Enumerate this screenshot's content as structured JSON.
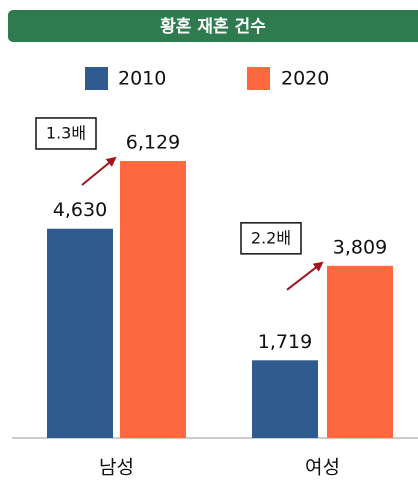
{
  "chart_data": {
    "type": "bar",
    "title": "황혼 재혼 건수",
    "categories": [
      "남성",
      "여성"
    ],
    "series": [
      {
        "name": "2010",
        "color": "#2f5b8f",
        "values": [
          4630,
          1719
        ],
        "value_labels": [
          "4,630",
          "1,719"
        ]
      },
      {
        "name": "2020",
        "color": "#fd6a3f",
        "values": [
          6129,
          3809
        ],
        "value_labels": [
          "6,129",
          "3,809"
        ]
      }
    ],
    "ylim": [
      0,
      7000
    ],
    "annotations": [
      {
        "text": "1.3배"
      },
      {
        "text": "2.2배"
      }
    ],
    "annotation_color": "#a3141f",
    "title_color": "#2e7b4f"
  }
}
